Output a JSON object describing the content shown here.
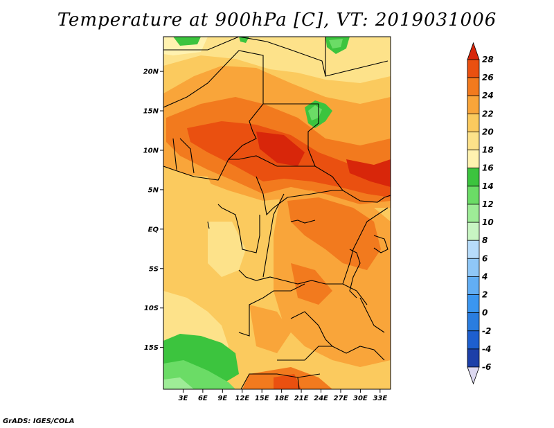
{
  "title": "Temperature at 900hPa [C], VT: 2019031006",
  "footer": "GrADS: IGES/COLA",
  "map": {
    "lat_ticks": [
      "20N",
      "15N",
      "10N",
      "5N",
      "EQ",
      "5S",
      "10S",
      "15S"
    ],
    "lon_ticks": [
      "3E",
      "6E",
      "9E",
      "12E",
      "15E",
      "18E",
      "21E",
      "24E",
      "27E",
      "30E",
      "33E"
    ],
    "lat_tick_values": [
      20,
      15,
      10,
      5,
      0,
      -5,
      -10,
      -15
    ],
    "lon_tick_values": [
      3,
      6,
      9,
      12,
      15,
      18,
      21,
      24,
      27,
      30,
      33
    ],
    "units": "C"
  },
  "colorbar": {
    "labels": [
      "28",
      "26",
      "24",
      "22",
      "20",
      "18",
      "16",
      "14",
      "12",
      "10",
      "8",
      "6",
      "4",
      "2",
      "0",
      "-2",
      "-4",
      "-6"
    ],
    "levels": [
      -6,
      -4,
      -2,
      0,
      2,
      4,
      6,
      8,
      10,
      12,
      14,
      16,
      18,
      20,
      22,
      24,
      26,
      28
    ],
    "colors": [
      "#1a1a6e",
      "#1c3fa8",
      "#1e5fcf",
      "#2a7de0",
      "#3b96f0",
      "#62aef4",
      "#8fc7f7",
      "#b7dcfa",
      "#c8f5c3",
      "#9eec97",
      "#6bdc66",
      "#3cc43e",
      "#fff2b0",
      "#fde28a",
      "#fbca5e",
      "#f9a53a",
      "#f27a1e",
      "#ea5010",
      "#d8260a"
    ],
    "color_low_arrow": "#dcd8f0",
    "color_high_arrow": "#d8260a"
  }
}
